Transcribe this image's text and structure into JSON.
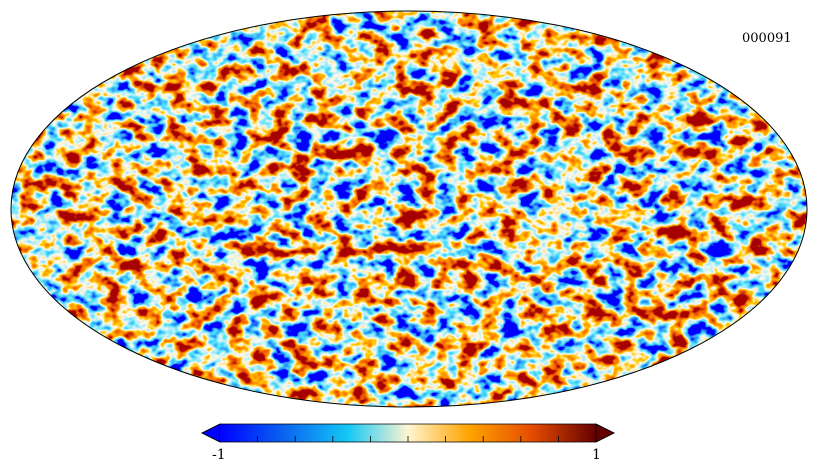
{
  "map": {
    "id_label": "000091",
    "projection": "mollweide",
    "colormap": "planck",
    "colors": {
      "deep_blue": "#0000ff",
      "blue": "#0a64f0",
      "cyan": "#14c8f5",
      "pale": "#fff5d2",
      "orange": "#ffa500",
      "red_orange": "#e64b00",
      "dark_red": "#640000",
      "outline": "#000000"
    }
  },
  "colorbar": {
    "min_label": "-1",
    "max_label": "1",
    "min_value": -1,
    "max_value": 1
  }
}
